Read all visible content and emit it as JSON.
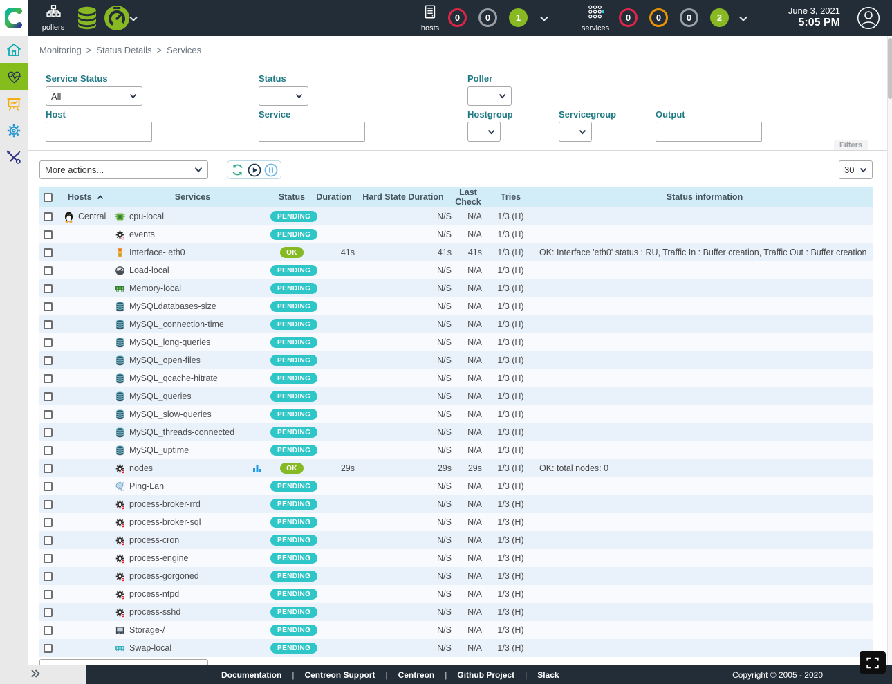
{
  "header": {
    "pollers_label": "pollers",
    "hosts_label": "hosts",
    "services_label": "services",
    "hosts_counters": [
      {
        "value": "0",
        "style": "red-outline",
        "name": "hosts-down-counter"
      },
      {
        "value": "0",
        "style": "gray-outline",
        "name": "hosts-unreachable-counter"
      },
      {
        "value": "1",
        "style": "green-filled",
        "name": "hosts-up-counter"
      }
    ],
    "services_counters": [
      {
        "value": "0",
        "style": "red-outline",
        "name": "services-critical-counter"
      },
      {
        "value": "0",
        "style": "orange-outline",
        "name": "services-warning-counter"
      },
      {
        "value": "0",
        "style": "gray-outline",
        "name": "services-unknown-counter"
      },
      {
        "value": "2",
        "style": "green-filled",
        "name": "services-ok-counter"
      }
    ],
    "date": "June 3, 2021",
    "time": "5:05 PM"
  },
  "sidebar": {
    "items": [
      {
        "id": "home",
        "icon": "home-icon",
        "active": false
      },
      {
        "id": "monitoring",
        "icon": "heartbeat-icon",
        "active": true
      },
      {
        "id": "reporting",
        "icon": "chart-easel-icon",
        "active": false
      },
      {
        "id": "configuration",
        "icon": "gear-icon",
        "active": false
      },
      {
        "id": "administration",
        "icon": "tools-icon",
        "active": false
      }
    ]
  },
  "breadcrumb": {
    "items": [
      "Monitoring",
      "Status Details",
      "Services"
    ],
    "separator": ">"
  },
  "filters": {
    "service_status": {
      "label": "Service Status",
      "value": "All"
    },
    "status": {
      "label": "Status",
      "value": ""
    },
    "poller": {
      "label": "Poller",
      "value": ""
    },
    "host": {
      "label": "Host",
      "value": ""
    },
    "service": {
      "label": "Service",
      "value": ""
    },
    "hostgroup": {
      "label": "Hostgroup",
      "value": ""
    },
    "servicegroup": {
      "label": "Servicegroup",
      "value": ""
    },
    "output": {
      "label": "Output",
      "value": ""
    },
    "filters_button": "Filters"
  },
  "toolbar": {
    "more_actions": "More actions...",
    "page_size": "30"
  },
  "table": {
    "columns": [
      "Hosts",
      "Services",
      "Status",
      "Duration",
      "Hard State Duration",
      "Last Check",
      "Tries",
      "Status information"
    ],
    "rows": [
      {
        "host": "Central",
        "host_icon": "linux-penguin-icon",
        "service_icon": "cpu-icon",
        "service": "cpu-local",
        "status": "PENDING",
        "duration": "",
        "hard_state_duration": "N/S",
        "last_check": "N/A",
        "tries": "1/3 (H)",
        "info": "",
        "has_graph": false
      },
      {
        "host": "",
        "host_icon": "",
        "service_icon": "gear-service-icon",
        "service": "events",
        "status": "PENDING",
        "duration": "",
        "hard_state_duration": "N/S",
        "last_check": "N/A",
        "tries": "1/3 (H)",
        "info": "",
        "has_graph": false
      },
      {
        "host": "",
        "host_icon": "",
        "service_icon": "traffic-light-icon",
        "service": "Interface- eth0",
        "status": "OK",
        "duration": "41s",
        "hard_state_duration": "41s",
        "last_check": "41s",
        "tries": "1/3 (H)",
        "info": "OK: Interface 'eth0' status : RU, Traffic In : Buffer creation, Traffic Out : Buffer creation",
        "has_graph": false
      },
      {
        "host": "",
        "host_icon": "",
        "service_icon": "gauge-service-icon",
        "service": "Load-local",
        "status": "PENDING",
        "duration": "",
        "hard_state_duration": "N/S",
        "last_check": "N/A",
        "tries": "1/3 (H)",
        "info": "",
        "has_graph": false
      },
      {
        "host": "",
        "host_icon": "",
        "service_icon": "memory-icon",
        "service": "Memory-local",
        "status": "PENDING",
        "duration": "",
        "hard_state_duration": "N/S",
        "last_check": "N/A",
        "tries": "1/3 (H)",
        "info": "",
        "has_graph": false
      },
      {
        "host": "",
        "host_icon": "",
        "service_icon": "database-icon",
        "service": "MySQLdatabases-size",
        "status": "PENDING",
        "duration": "",
        "hard_state_duration": "N/S",
        "last_check": "N/A",
        "tries": "1/3 (H)",
        "info": "",
        "has_graph": false
      },
      {
        "host": "",
        "host_icon": "",
        "service_icon": "database-icon",
        "service": "MySQL_connection-time",
        "status": "PENDING",
        "duration": "",
        "hard_state_duration": "N/S",
        "last_check": "N/A",
        "tries": "1/3 (H)",
        "info": "",
        "has_graph": false
      },
      {
        "host": "",
        "host_icon": "",
        "service_icon": "database-icon",
        "service": "MySQL_long-queries",
        "status": "PENDING",
        "duration": "",
        "hard_state_duration": "N/S",
        "last_check": "N/A",
        "tries": "1/3 (H)",
        "info": "",
        "has_graph": false
      },
      {
        "host": "",
        "host_icon": "",
        "service_icon": "database-icon",
        "service": "MySQL_open-files",
        "status": "PENDING",
        "duration": "",
        "hard_state_duration": "N/S",
        "last_check": "N/A",
        "tries": "1/3 (H)",
        "info": "",
        "has_graph": false
      },
      {
        "host": "",
        "host_icon": "",
        "service_icon": "database-icon",
        "service": "MySQL_qcache-hitrate",
        "status": "PENDING",
        "duration": "",
        "hard_state_duration": "N/S",
        "last_check": "N/A",
        "tries": "1/3 (H)",
        "info": "",
        "has_graph": false
      },
      {
        "host": "",
        "host_icon": "",
        "service_icon": "database-icon",
        "service": "MySQL_queries",
        "status": "PENDING",
        "duration": "",
        "hard_state_duration": "N/S",
        "last_check": "N/A",
        "tries": "1/3 (H)",
        "info": "",
        "has_graph": false
      },
      {
        "host": "",
        "host_icon": "",
        "service_icon": "database-icon",
        "service": "MySQL_slow-queries",
        "status": "PENDING",
        "duration": "",
        "hard_state_duration": "N/S",
        "last_check": "N/A",
        "tries": "1/3 (H)",
        "info": "",
        "has_graph": false
      },
      {
        "host": "",
        "host_icon": "",
        "service_icon": "database-icon",
        "service": "MySQL_threads-connected",
        "status": "PENDING",
        "duration": "",
        "hard_state_duration": "N/S",
        "last_check": "N/A",
        "tries": "1/3 (H)",
        "info": "",
        "has_graph": false
      },
      {
        "host": "",
        "host_icon": "",
        "service_icon": "database-icon",
        "service": "MySQL_uptime",
        "status": "PENDING",
        "duration": "",
        "hard_state_duration": "N/S",
        "last_check": "N/A",
        "tries": "1/3 (H)",
        "info": "",
        "has_graph": false
      },
      {
        "host": "",
        "host_icon": "",
        "service_icon": "gear-service-icon",
        "service": "nodes",
        "status": "OK",
        "duration": "29s",
        "hard_state_duration": "29s",
        "last_check": "29s",
        "tries": "1/3 (H)",
        "info": "OK: total nodes: 0",
        "has_graph": true
      },
      {
        "host": "",
        "host_icon": "",
        "service_icon": "satellite-icon",
        "service": "Ping-Lan",
        "status": "PENDING",
        "duration": "",
        "hard_state_duration": "N/S",
        "last_check": "N/A",
        "tries": "1/3 (H)",
        "info": "",
        "has_graph": false
      },
      {
        "host": "",
        "host_icon": "",
        "service_icon": "gear-service-icon",
        "service": "process-broker-rrd",
        "status": "PENDING",
        "duration": "",
        "hard_state_duration": "N/S",
        "last_check": "N/A",
        "tries": "1/3 (H)",
        "info": "",
        "has_graph": false
      },
      {
        "host": "",
        "host_icon": "",
        "service_icon": "gear-service-icon",
        "service": "process-broker-sql",
        "status": "PENDING",
        "duration": "",
        "hard_state_duration": "N/S",
        "last_check": "N/A",
        "tries": "1/3 (H)",
        "info": "",
        "has_graph": false
      },
      {
        "host": "",
        "host_icon": "",
        "service_icon": "gear-service-icon",
        "service": "process-cron",
        "status": "PENDING",
        "duration": "",
        "hard_state_duration": "N/S",
        "last_check": "N/A",
        "tries": "1/3 (H)",
        "info": "",
        "has_graph": false
      },
      {
        "host": "",
        "host_icon": "",
        "service_icon": "gear-service-icon",
        "service": "process-engine",
        "status": "PENDING",
        "duration": "",
        "hard_state_duration": "N/S",
        "last_check": "N/A",
        "tries": "1/3 (H)",
        "info": "",
        "has_graph": false
      },
      {
        "host": "",
        "host_icon": "",
        "service_icon": "gear-service-icon",
        "service": "process-gorgoned",
        "status": "PENDING",
        "duration": "",
        "hard_state_duration": "N/S",
        "last_check": "N/A",
        "tries": "1/3 (H)",
        "info": "",
        "has_graph": false
      },
      {
        "host": "",
        "host_icon": "",
        "service_icon": "gear-service-icon",
        "service": "process-ntpd",
        "status": "PENDING",
        "duration": "",
        "hard_state_duration": "N/S",
        "last_check": "N/A",
        "tries": "1/3 (H)",
        "info": "",
        "has_graph": false
      },
      {
        "host": "",
        "host_icon": "",
        "service_icon": "gear-service-icon",
        "service": "process-sshd",
        "status": "PENDING",
        "duration": "",
        "hard_state_duration": "N/S",
        "last_check": "N/A",
        "tries": "1/3 (H)",
        "info": "",
        "has_graph": false
      },
      {
        "host": "",
        "host_icon": "",
        "service_icon": "harddisk-icon",
        "service": "Storage-/",
        "status": "PENDING",
        "duration": "",
        "hard_state_duration": "N/S",
        "last_check": "N/A",
        "tries": "1/3 (H)",
        "info": "",
        "has_graph": false
      },
      {
        "host": "",
        "host_icon": "",
        "service_icon": "swap-icon",
        "service": "Swap-local",
        "status": "PENDING",
        "duration": "",
        "hard_state_duration": "N/S",
        "last_check": "N/A",
        "tries": "1/3 (H)",
        "info": "",
        "has_graph": false
      }
    ]
  },
  "footer": {
    "links": [
      "Documentation",
      "Centreon Support",
      "Centreon",
      "Github Project",
      "Slack"
    ],
    "separator": "|",
    "copyright": "Copyright © 2005 - 2020"
  },
  "colors": {
    "header_bg": "#232d38",
    "sidebar_bg": "#e9e9e9",
    "active_green": "#84bd1c",
    "green": "#88b922",
    "ok": "#85ba25",
    "pending": "#2fc6c8",
    "red": "#df2648",
    "orange": "#ef9400",
    "thead_bg": "#d2edf7",
    "teal_label": "#1f7a85",
    "row_odd": "#e9f1fb",
    "row_even": "#f8fafd"
  }
}
